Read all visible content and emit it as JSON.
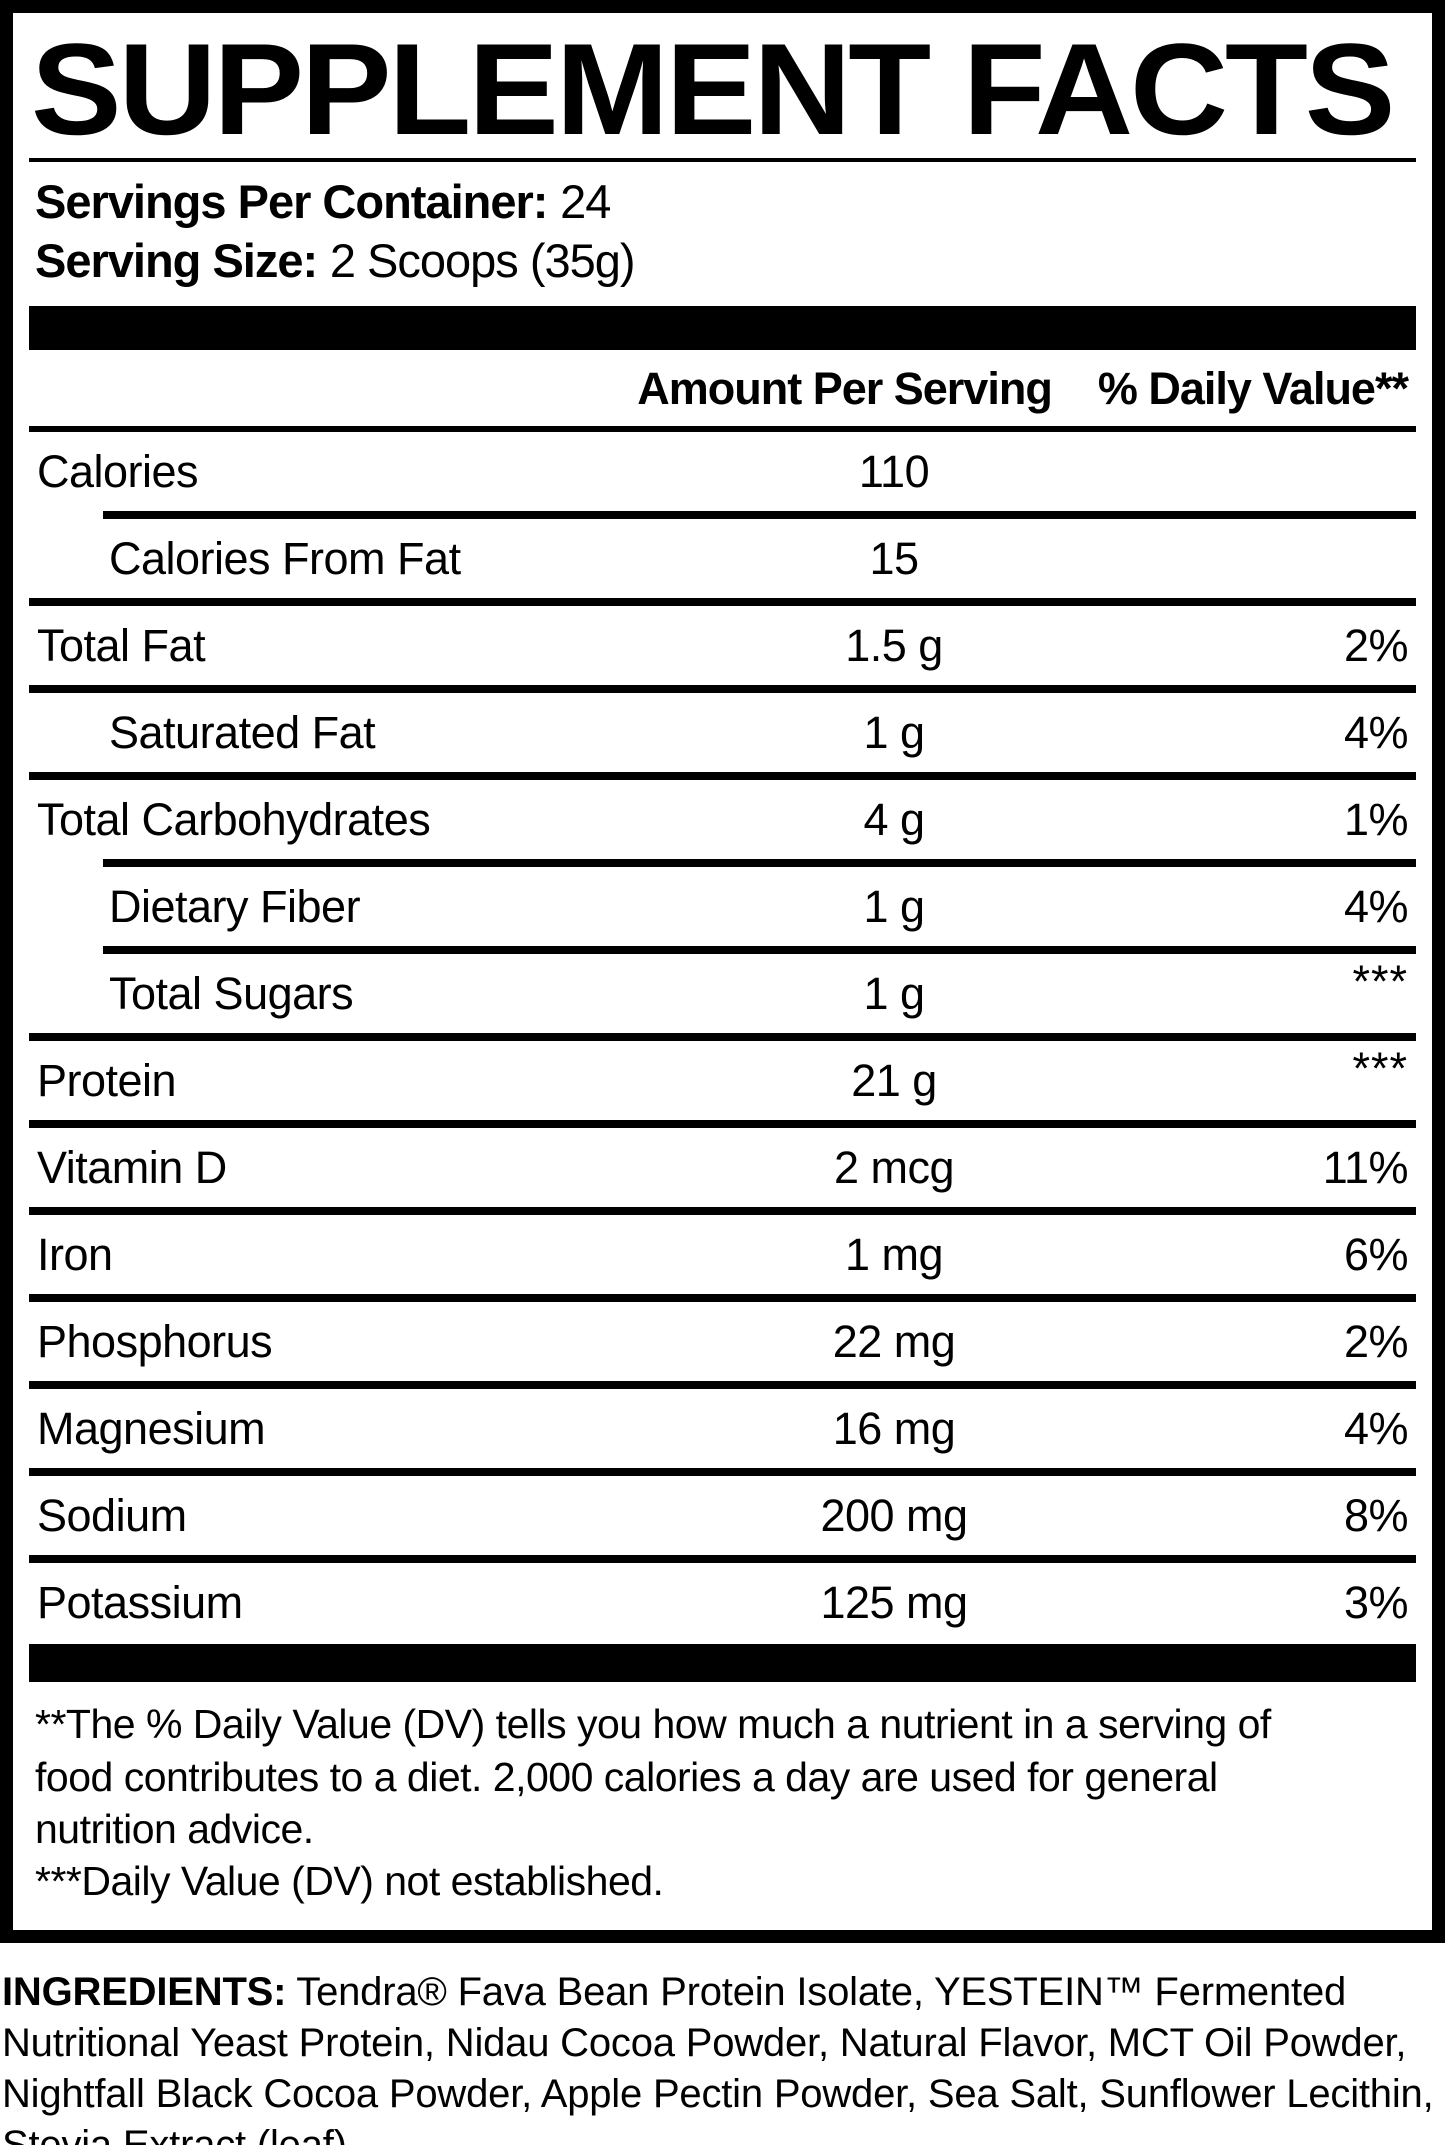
{
  "colors": {
    "text": "#000000",
    "background": "#ffffff"
  },
  "panel": {
    "title": "SUPPLEMENT FACTS",
    "servings_per_container": {
      "label": "Servings Per Container:",
      "value": "24"
    },
    "serving_size": {
      "label": "Serving Size:",
      "value": "2 Scoops (35g)"
    },
    "column_headers": {
      "amount": "Amount Per Serving",
      "daily_value": "% Daily Value**"
    },
    "rows": [
      {
        "label": "Calories",
        "amount": "110",
        "dv": "",
        "indent": false,
        "divider": "none"
      },
      {
        "label": "Calories From Fat",
        "amount": "15",
        "dv": "",
        "indent": true,
        "divider": "indent"
      },
      {
        "label": "Total Fat",
        "amount": "1.5 g",
        "dv": "2%",
        "indent": false,
        "divider": "full"
      },
      {
        "label": "Saturated Fat",
        "amount": "1 g",
        "dv": "4%",
        "indent": true,
        "divider": "full"
      },
      {
        "label": "Total Carbohydrates",
        "amount": "4 g",
        "dv": "1%",
        "indent": false,
        "divider": "full"
      },
      {
        "label": "Dietary Fiber",
        "amount": "1 g",
        "dv": "4%",
        "indent": true,
        "divider": "indent"
      },
      {
        "label": "Total Sugars",
        "amount": "1 g",
        "dv": "***",
        "indent": true,
        "divider": "indent"
      },
      {
        "label": "Protein",
        "amount": "21 g",
        "dv": "***",
        "indent": false,
        "divider": "full"
      },
      {
        "label": "Vitamin D",
        "amount": "2 mcg",
        "dv": "11%",
        "indent": false,
        "divider": "full"
      },
      {
        "label": "Iron",
        "amount": "1 mg",
        "dv": "6%",
        "indent": false,
        "divider": "full"
      },
      {
        "label": "Phosphorus",
        "amount": "22 mg",
        "dv": "2%",
        "indent": false,
        "divider": "full"
      },
      {
        "label": "Magnesium",
        "amount": "16 mg",
        "dv": "4%",
        "indent": false,
        "divider": "full"
      },
      {
        "label": "Sodium",
        "amount": "200 mg",
        "dv": "8%",
        "indent": false,
        "divider": "full"
      },
      {
        "label": "Potassium",
        "amount": "125 mg",
        "dv": "3%",
        "indent": false,
        "divider": "full"
      }
    ],
    "footnote_lines": [
      "**The % Daily Value (DV) tells you how much a nutrient in a serving of",
      "food contributes to a diet. 2,000 calories a day are used for general",
      "nutrition advice.",
      "***Daily Value (DV) not established."
    ]
  },
  "ingredients": {
    "label": "INGREDIENTS:",
    "text": "Tendra® Fava Bean Protein Isolate, YESTEIN™ Fermented Nutritional Yeast Protein, Nidau Cocoa Powder, Natural Flavor, MCT Oil Powder, Nightfall Black Cocoa Powder, Apple Pectin Powder, Sea Salt, Sunflower Lecithin, Stevia Extract (leaf)."
  }
}
